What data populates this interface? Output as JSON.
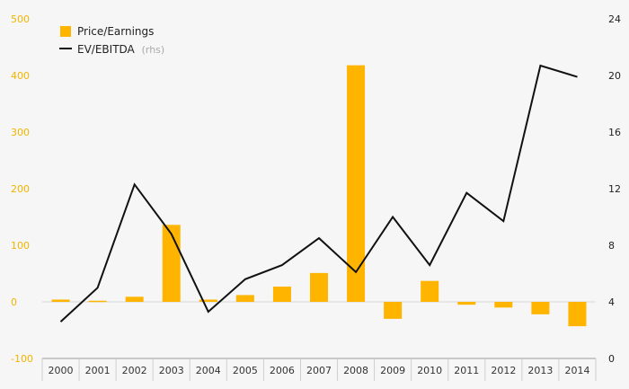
{
  "chart_data": {
    "type": "bar+line",
    "categories": [
      "2000",
      "2001",
      "2002",
      "2003",
      "2004",
      "2005",
      "2006",
      "2007",
      "2008",
      "2009",
      "2010",
      "2011",
      "2012",
      "2013",
      "2014"
    ],
    "series": [
      {
        "name": "Price/Earnings",
        "type": "bar",
        "axis": "left",
        "color": "#ffb400",
        "values": [
          4,
          2,
          9,
          136,
          4,
          12,
          27,
          51,
          418,
          -30,
          37,
          -5,
          -10,
          -22,
          -43
        ]
      },
      {
        "name": "EV/EBITDA",
        "axis_note": "(rhs)",
        "type": "line",
        "axis": "right",
        "color": "#111111",
        "values": [
          2.6,
          5.0,
          12.3,
          8.8,
          3.3,
          5.6,
          6.6,
          8.5,
          6.1,
          10.0,
          6.6,
          11.7,
          9.7,
          20.7,
          19.9
        ]
      }
    ],
    "ylim_left": [
      -100,
      500
    ],
    "yticks_left": [
      "-100",
      "0",
      "100",
      "200",
      "300",
      "400",
      "500"
    ],
    "ylim_right": [
      0,
      24
    ],
    "yticks_right": [
      "0",
      "4",
      "8",
      "12",
      "16",
      "20",
      "24"
    ],
    "legend": {
      "position": "top-left",
      "items": [
        {
          "label": "Price/Earnings",
          "suffix": ""
        },
        {
          "label": "EV/EBITDA",
          "suffix": "(rhs)"
        }
      ]
    },
    "grid": false
  }
}
